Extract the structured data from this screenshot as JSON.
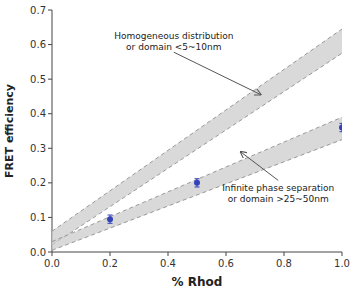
{
  "chart_data": {
    "type": "scatter",
    "x_label": "% Rhod",
    "y_label": "FRET efficiency",
    "xlim": [
      0,
      1.0
    ],
    "ylim": [
      0,
      0.7
    ],
    "xticks": [
      {
        "value": 0,
        "label": "0.0"
      },
      0.2,
      0.4,
      0.6,
      0.8,
      {
        "value": 1.0,
        "label": "1.0"
      }
    ],
    "yticks": [
      {
        "value": 0,
        "label": "0.0"
      },
      0.1,
      0.2,
      0.3,
      0.4,
      0.5,
      0.6,
      0.7
    ],
    "grid": false,
    "x": [
      0.2,
      0.5,
      1.0
    ],
    "series": [
      {
        "values": [
          0.095,
          0.2,
          0.36
        ],
        "errors": [
          0.012,
          0.012,
          0.012
        ],
        "color": "#3344bb",
        "marker": "circle"
      }
    ],
    "bands": [
      {
        "x": [
          0.0,
          1.0
        ],
        "lower": [
          0.02,
          0.575
        ],
        "upper": [
          0.06,
          0.645
        ],
        "color": "#cccccc",
        "line_style": "dashed"
      },
      {
        "x": [
          0.0,
          1.0
        ],
        "lower": [
          0.005,
          0.325
        ],
        "upper": [
          0.03,
          0.39
        ],
        "color": "#cccccc",
        "line_style": "dashed"
      }
    ],
    "annotations": [
      {
        "text": "Homogeneous distribution\nor domain <5~10nm",
        "x": 0.72,
        "y": 0.455,
        "text_x": 0.42,
        "text_y": 0.575
      },
      {
        "text": "Infinite phase separation\nor domain >25~50nm",
        "x": 0.65,
        "y": 0.29,
        "text_x": 0.78,
        "text_y": 0.21
      }
    ]
  }
}
